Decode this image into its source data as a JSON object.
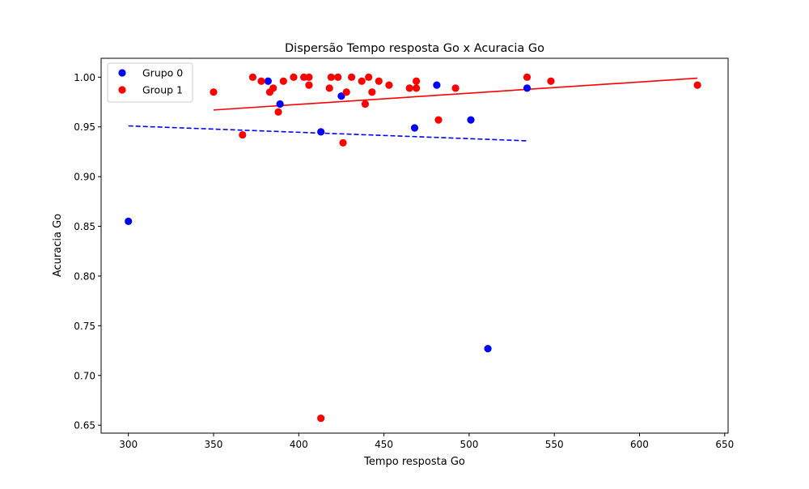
{
  "chart_data": {
    "type": "scatter",
    "title": "Dispersão Tempo resposta Go x Acuracia Go",
    "xlabel": "Tempo resposta Go",
    "ylabel": "Acuracia Go",
    "xlim": [
      284,
      652
    ],
    "ylim": [
      0.642,
      1.019
    ],
    "xticks": [
      300,
      350,
      400,
      450,
      500,
      550,
      600,
      650
    ],
    "yticks": [
      0.65,
      0.7,
      0.75,
      0.8,
      0.85,
      0.9,
      0.95,
      1.0
    ],
    "xtick_labels": [
      "300",
      "350",
      "400",
      "450",
      "500",
      "550",
      "600",
      "650"
    ],
    "ytick_labels": [
      "0.65",
      "0.70",
      "0.75",
      "0.80",
      "0.85",
      "0.90",
      "0.95",
      "1.00"
    ],
    "grid": false,
    "legend_position": "top-left",
    "series": [
      {
        "name": "Grupo 0",
        "color": "#0000ff",
        "points": [
          [
            300,
            0.855
          ],
          [
            382,
            0.996
          ],
          [
            389,
            0.973
          ],
          [
            413,
            0.945
          ],
          [
            425,
            0.981
          ],
          [
            468,
            0.949
          ],
          [
            481,
            0.992
          ],
          [
            501,
            0.957
          ],
          [
            511,
            0.727
          ],
          [
            534,
            0.989
          ]
        ],
        "trendline": {
          "x": [
            300,
            534
          ],
          "y": [
            0.951,
            0.936
          ],
          "style": "dashed"
        }
      },
      {
        "name": "Group 1",
        "color": "#ff0000",
        "points": [
          [
            350,
            0.985
          ],
          [
            367,
            0.942
          ],
          [
            373,
            1.0
          ],
          [
            378,
            0.996
          ],
          [
            383,
            0.985
          ],
          [
            385,
            0.989
          ],
          [
            388,
            0.965
          ],
          [
            391,
            0.996
          ],
          [
            397,
            1.0
          ],
          [
            403,
            1.0
          ],
          [
            406,
            1.0
          ],
          [
            406,
            0.992
          ],
          [
            413,
            0.657
          ],
          [
            418,
            0.989
          ],
          [
            419,
            1.0
          ],
          [
            423,
            1.0
          ],
          [
            426,
            0.934
          ],
          [
            428,
            0.985
          ],
          [
            431,
            1.0
          ],
          [
            437,
            0.996
          ],
          [
            439,
            0.973
          ],
          [
            441,
            1.0
          ],
          [
            443,
            0.985
          ],
          [
            447,
            0.996
          ],
          [
            453,
            0.992
          ],
          [
            465,
            0.989
          ],
          [
            469,
            0.989
          ],
          [
            469,
            0.996
          ],
          [
            482,
            0.957
          ],
          [
            492,
            0.989
          ],
          [
            534,
            1.0
          ],
          [
            548,
            0.996
          ],
          [
            634,
            0.992
          ]
        ],
        "trendline": {
          "x": [
            350,
            634
          ],
          "y": [
            0.967,
            0.999
          ],
          "style": "solid"
        }
      }
    ]
  }
}
